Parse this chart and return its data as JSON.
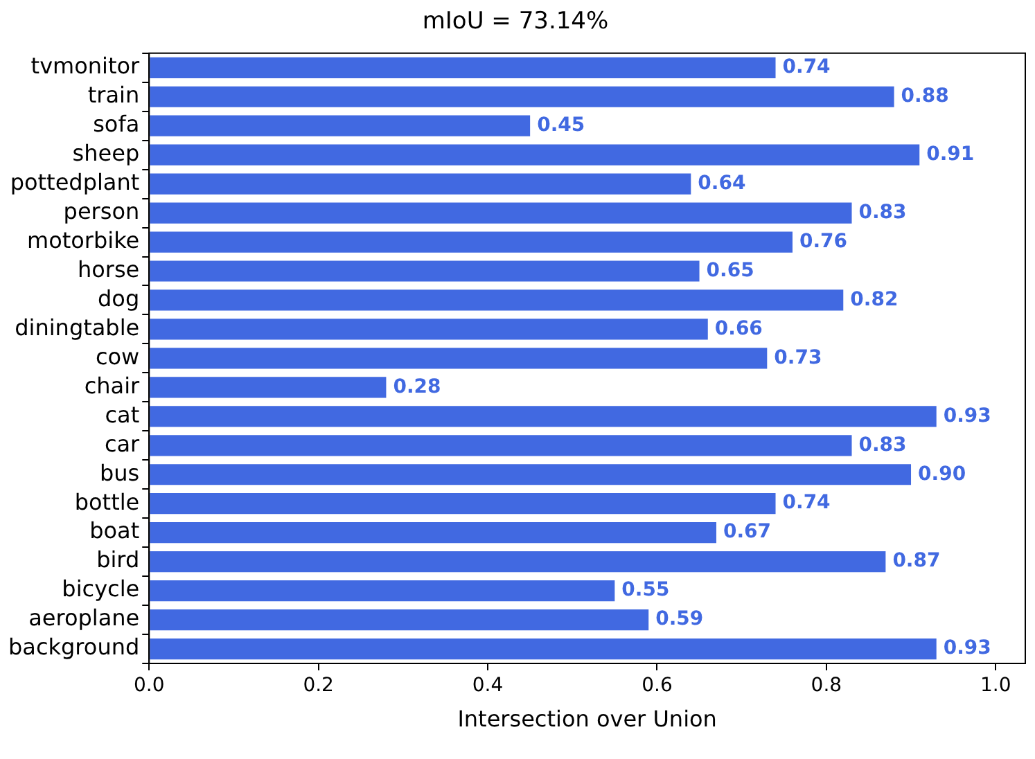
{
  "chart_data": {
    "type": "bar",
    "orientation": "horizontal",
    "title": "mIoU = 73.14%",
    "xlabel": "Intersection over Union",
    "categories": [
      "tvmonitor",
      "train",
      "sofa",
      "sheep",
      "pottedplant",
      "person",
      "motorbike",
      "horse",
      "dog",
      "diningtable",
      "cow",
      "chair",
      "cat",
      "car",
      "bus",
      "bottle",
      "boat",
      "bird",
      "bicycle",
      "aeroplane",
      "background"
    ],
    "values": [
      0.74,
      0.88,
      0.45,
      0.91,
      0.64,
      0.83,
      0.76,
      0.65,
      0.82,
      0.66,
      0.73,
      0.28,
      0.93,
      0.83,
      0.9,
      0.74,
      0.67,
      0.87,
      0.55,
      0.59,
      0.93
    ],
    "value_labels": [
      "0.74",
      "0.88",
      "0.45",
      "0.91",
      "0.64",
      "0.83",
      "0.76",
      "0.65",
      "0.82",
      "0.66",
      "0.73",
      "0.28",
      "0.93",
      "0.83",
      "0.90",
      "0.74",
      "0.67",
      "0.87",
      "0.55",
      "0.59",
      "0.93"
    ],
    "color": "#4169e1",
    "xlim": [
      0,
      1.035
    ],
    "xticks": [
      {
        "value": 0,
        "label": "0.0"
      },
      {
        "value": 0.2,
        "label": "0.2"
      },
      {
        "value": 0.4,
        "label": "0.4"
      },
      {
        "value": 0.6,
        "label": "0.6"
      },
      {
        "value": 0.8,
        "label": "0.8"
      },
      {
        "value": 1,
        "label": "1.0"
      }
    ],
    "grid": false,
    "legend": false
  }
}
